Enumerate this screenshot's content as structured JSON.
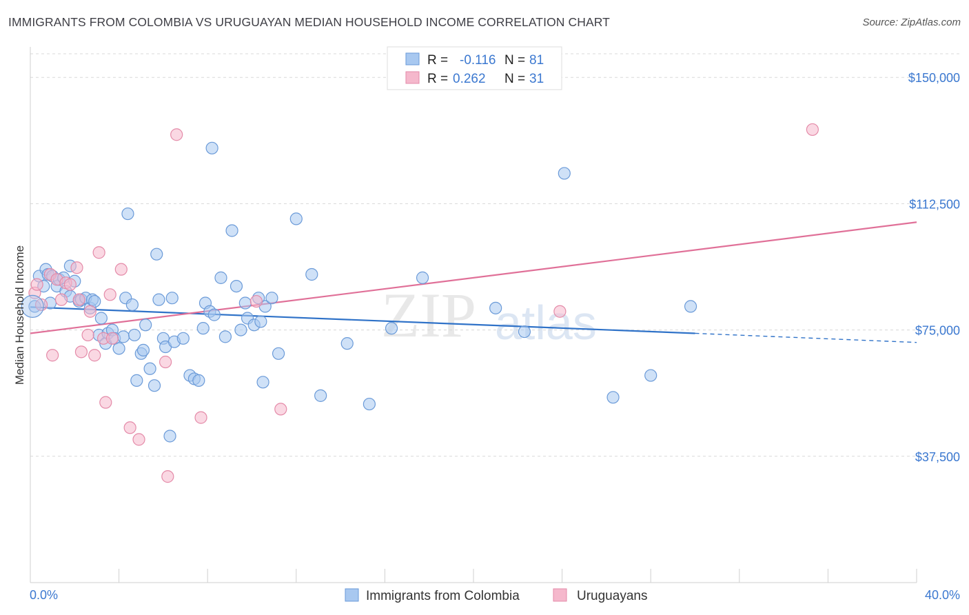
{
  "title": "IMMIGRANTS FROM COLOMBIA VS URUGUAYAN MEDIAN HOUSEHOLD INCOME CORRELATION CHART",
  "source": "Source: ZipAtlas.com",
  "watermark": {
    "zip": "ZIP",
    "atlas": "atlas"
  },
  "colors": {
    "blue_fill": "#a8c8f0",
    "blue_stroke": "#6a9ad8",
    "blue_line": "#2f72c8",
    "pink_fill": "#f5b8cc",
    "pink_stroke": "#e48aa8",
    "pink_line": "#e07098",
    "tick_text": "#3b78d0",
    "grid": "#d8d8d8"
  },
  "legend": {
    "rows": [
      {
        "r_label": "R = ",
        "r_value": "-0.116",
        "n_label": "N = ",
        "n_value": "81"
      },
      {
        "r_label": "R = ",
        "r_value": "0.262",
        "n_label": "N = ",
        "n_value": "31"
      }
    ]
  },
  "bottom_legend": [
    "Immigrants from Colombia",
    "Uruguayans"
  ],
  "chart_data": {
    "type": "scatter",
    "title": "IMMIGRANTS FROM COLOMBIA VS URUGUAYAN MEDIAN HOUSEHOLD INCOME CORRELATION CHART",
    "xlabel": "",
    "ylabel": "Median Household Income",
    "xlim": [
      0,
      40
    ],
    "ylim": [
      0,
      157000
    ],
    "x_tick_labels": [
      "0.0%",
      "40.0%"
    ],
    "y_ticks": [
      37500,
      75000,
      112500,
      150000
    ],
    "y_tick_labels": [
      "$37,500",
      "$75,000",
      "$112,500",
      "$150,000"
    ],
    "grid": true,
    "legend_placement": "top-center",
    "series": [
      {
        "name": "Immigrants from Colombia",
        "color": "#a8c8f0",
        "trend": {
          "x": [
            0,
            30
          ],
          "y": [
            81800,
            74000
          ],
          "dashed_to": {
            "x": 40,
            "y": 71300
          }
        },
        "points": [
          [
            0.2,
            82000
          ],
          [
            0.4,
            91000
          ],
          [
            0.6,
            88000
          ],
          [
            0.7,
            93000
          ],
          [
            0.8,
            91500
          ],
          [
            0.9,
            83000
          ],
          [
            1.0,
            91000
          ],
          [
            1.2,
            88000
          ],
          [
            1.3,
            90000
          ],
          [
            1.5,
            90500
          ],
          [
            1.6,
            86500
          ],
          [
            1.8,
            85000
          ],
          [
            1.8,
            94000
          ],
          [
            2.0,
            89500
          ],
          [
            2.2,
            83500
          ],
          [
            2.3,
            84000
          ],
          [
            2.5,
            84500
          ],
          [
            2.7,
            81500
          ],
          [
            2.8,
            84000
          ],
          [
            2.9,
            83500
          ],
          [
            3.1,
            73500
          ],
          [
            3.2,
            78500
          ],
          [
            3.4,
            71000
          ],
          [
            3.5,
            74000
          ],
          [
            3.7,
            75000
          ],
          [
            3.8,
            72500
          ],
          [
            4.0,
            69500
          ],
          [
            4.2,
            73000
          ],
          [
            4.3,
            84500
          ],
          [
            4.4,
            109500
          ],
          [
            4.6,
            82500
          ],
          [
            4.7,
            73500
          ],
          [
            4.8,
            60000
          ],
          [
            5.0,
            68000
          ],
          [
            5.1,
            69000
          ],
          [
            5.2,
            76500
          ],
          [
            5.4,
            63500
          ],
          [
            5.6,
            58500
          ],
          [
            5.7,
            97500
          ],
          [
            5.8,
            84000
          ],
          [
            6.0,
            72500
          ],
          [
            6.1,
            70000
          ],
          [
            6.3,
            43500
          ],
          [
            6.4,
            84500
          ],
          [
            6.5,
            71500
          ],
          [
            6.9,
            72500
          ],
          [
            7.2,
            61500
          ],
          [
            7.4,
            60500
          ],
          [
            7.6,
            60000
          ],
          [
            7.8,
            75500
          ],
          [
            7.9,
            83000
          ],
          [
            8.1,
            80500
          ],
          [
            8.2,
            129000
          ],
          [
            8.3,
            79500
          ],
          [
            8.6,
            90500
          ],
          [
            8.8,
            73000
          ],
          [
            9.1,
            104500
          ],
          [
            9.3,
            88000
          ],
          [
            9.5,
            75000
          ],
          [
            9.7,
            83000
          ],
          [
            9.8,
            78500
          ],
          [
            10.1,
            76500
          ],
          [
            10.3,
            84500
          ],
          [
            10.4,
            77500
          ],
          [
            10.5,
            59500
          ],
          [
            10.6,
            82000
          ],
          [
            10.9,
            84500
          ],
          [
            11.2,
            68000
          ],
          [
            12.0,
            108000
          ],
          [
            12.7,
            91500
          ],
          [
            13.1,
            55500
          ],
          [
            14.3,
            71000
          ],
          [
            15.3,
            53000
          ],
          [
            16.3,
            75500
          ],
          [
            17.7,
            90500
          ],
          [
            21.0,
            81500
          ],
          [
            22.3,
            74500
          ],
          [
            24.1,
            121500
          ],
          [
            26.3,
            55000
          ],
          [
            28.0,
            61500
          ],
          [
            29.8,
            82000
          ]
        ]
      },
      {
        "name": "Uruguayans",
        "color": "#f5b8cc",
        "trend": {
          "x": [
            0,
            40
          ],
          "y": [
            74000,
            107000
          ]
        },
        "points": [
          [
            0.2,
            86000
          ],
          [
            0.3,
            88500
          ],
          [
            0.5,
            82500
          ],
          [
            0.9,
            91500
          ],
          [
            1.0,
            67500
          ],
          [
            1.2,
            90000
          ],
          [
            1.4,
            84000
          ],
          [
            1.6,
            89000
          ],
          [
            1.8,
            88500
          ],
          [
            2.1,
            93500
          ],
          [
            2.2,
            84000
          ],
          [
            2.3,
            68500
          ],
          [
            2.6,
            73500
          ],
          [
            2.7,
            80500
          ],
          [
            2.9,
            67500
          ],
          [
            3.1,
            98000
          ],
          [
            3.3,
            72500
          ],
          [
            3.4,
            53500
          ],
          [
            3.6,
            85500
          ],
          [
            3.7,
            72500
          ],
          [
            4.1,
            93000
          ],
          [
            4.5,
            46000
          ],
          [
            4.9,
            42500
          ],
          [
            6.1,
            65500
          ],
          [
            6.2,
            31500
          ],
          [
            6.6,
            133000
          ],
          [
            7.7,
            49000
          ],
          [
            10.2,
            83500
          ],
          [
            11.3,
            51500
          ],
          [
            23.9,
            80500
          ],
          [
            35.3,
            134500
          ]
        ]
      }
    ]
  }
}
